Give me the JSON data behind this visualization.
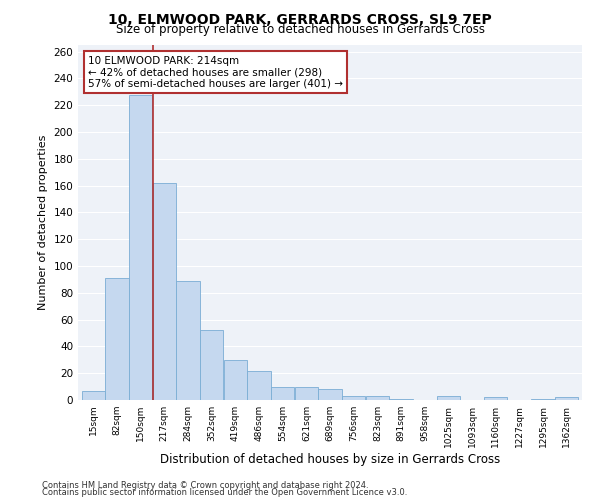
{
  "title": "10, ELMWOOD PARK, GERRARDS CROSS, SL9 7EP",
  "subtitle": "Size of property relative to detached houses in Gerrards Cross",
  "xlabel": "Distribution of detached houses by size in Gerrards Cross",
  "ylabel": "Number of detached properties",
  "footnote1": "Contains HM Land Registry data © Crown copyright and database right 2024.",
  "footnote2": "Contains public sector information licensed under the Open Government Licence v3.0.",
  "annotation_title": "10 ELMWOOD PARK: 214sqm",
  "annotation_line1": "← 42% of detached houses are smaller (298)",
  "annotation_line2": "57% of semi-detached houses are larger (401) →",
  "bar_labels": [
    "15sqm",
    "82sqm",
    "150sqm",
    "217sqm",
    "284sqm",
    "352sqm",
    "419sqm",
    "486sqm",
    "554sqm",
    "621sqm",
    "689sqm",
    "756sqm",
    "823sqm",
    "891sqm",
    "958sqm",
    "1025sqm",
    "1093sqm",
    "1160sqm",
    "1227sqm",
    "1295sqm",
    "1362sqm"
  ],
  "bar_edges": [
    15,
    82,
    150,
    217,
    284,
    352,
    419,
    486,
    554,
    621,
    689,
    756,
    823,
    891,
    958,
    1025,
    1093,
    1160,
    1227,
    1295,
    1362,
    1429
  ],
  "bar_values": [
    7,
    91,
    228,
    162,
    89,
    52,
    30,
    22,
    10,
    10,
    8,
    3,
    3,
    1,
    0,
    3,
    0,
    2,
    0,
    1,
    2
  ],
  "bar_color": "#c5d8ef",
  "bar_edge_color": "#7aadd4",
  "vline_color": "#b03030",
  "annotation_box_color": "#b03030",
  "background_color": "#eef2f8",
  "ylim": [
    0,
    265
  ],
  "yticks": [
    0,
    20,
    40,
    60,
    80,
    100,
    120,
    140,
    160,
    180,
    200,
    220,
    240,
    260
  ],
  "vline_bin_edge": 217
}
